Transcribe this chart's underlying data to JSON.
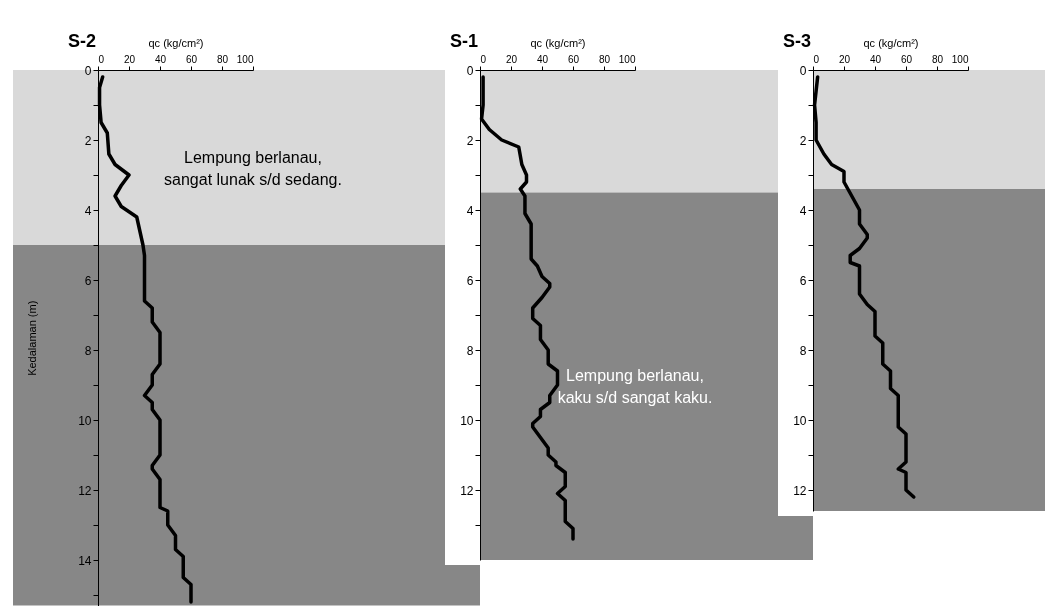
{
  "chart_data": [
    {
      "type": "line",
      "title": "S-2",
      "xlabel": "qc (kg/cm²)",
      "ylabel": "Kedalaman  (m)",
      "xlim": [
        0,
        100
      ],
      "xticks": [
        0,
        20,
        40,
        60,
        80,
        100
      ],
      "ylim": [
        15.3,
        0
      ],
      "yticks": [
        0,
        {
          "value": 1,
          "label": null
        },
        2,
        {
          "value": 3,
          "label": null
        },
        4,
        {
          "value": 5,
          "label": null
        },
        6,
        {
          "value": 7,
          "label": null
        },
        8,
        {
          "value": 9,
          "label": null
        },
        10,
        {
          "value": 11,
          "label": null
        },
        12,
        {
          "value": 13,
          "label": null
        },
        14,
        {
          "value": 15,
          "label": null
        }
      ],
      "grid": false,
      "marker": "none",
      "line_style": "solid",
      "bands": [
        {
          "axis": "y",
          "from": 0,
          "to": 5.0,
          "color": "#d9d9d9",
          "label": "Lempung berlanau,\nsangat lunak s/d sedang."
        },
        {
          "axis": "y",
          "from": 5.0,
          "to": 15.3,
          "color": "#878787"
        }
      ],
      "series": [
        {
          "color": "#000000",
          "x": [
            3,
            1,
            1,
            2,
            6,
            7,
            11,
            20,
            15,
            11,
            15,
            25,
            27,
            29,
            30,
            30,
            35,
            35,
            40,
            40,
            35,
            35,
            30,
            35,
            35,
            40,
            40,
            35,
            35,
            40,
            40,
            45,
            45,
            50,
            50,
            55,
            55,
            60,
            60
          ],
          "values": [
            0.2,
            0.5,
            1.0,
            1.5,
            1.8,
            2.4,
            2.7,
            3.0,
            3.3,
            3.6,
            3.9,
            4.2,
            4.6,
            5.0,
            5.3,
            6.6,
            6.8,
            7.2,
            7.5,
            8.4,
            8.7,
            9.0,
            9.3,
            9.5,
            9.7,
            10.0,
            11.0,
            11.3,
            11.4,
            11.7,
            12.5,
            12.6,
            13.0,
            13.3,
            13.7,
            13.9,
            14.5,
            14.7,
            15.2
          ]
        }
      ]
    },
    {
      "type": "line",
      "title": "S-1",
      "xlabel": "qc (kg/cm²)",
      "xlim": [
        0,
        100
      ],
      "xticks": [
        0,
        20,
        40,
        60,
        80,
        100
      ],
      "ylim": [
        14,
        0
      ],
      "yticks": [
        0,
        {
          "value": 1,
          "label": null
        },
        2,
        {
          "value": 3,
          "label": null
        },
        4,
        {
          "value": 5,
          "label": null
        },
        6,
        {
          "value": 7,
          "label": null
        },
        8,
        {
          "value": 9,
          "label": null
        },
        10,
        {
          "value": 11,
          "label": null
        },
        12,
        {
          "value": 13,
          "label": null
        }
      ],
      "grid": false,
      "marker": "none",
      "line_style": "solid",
      "bands": [
        {
          "axis": "y",
          "from": 0,
          "to": 3.5,
          "color": "#d9d9d9"
        },
        {
          "axis": "y",
          "from": 3.5,
          "to": 14,
          "color": "#878787",
          "label": "Lempung berlanau,\nkaku s/d sangat kaku."
        }
      ],
      "series": [
        {
          "color": "#000000",
          "x": [
            2,
            2,
            1,
            6,
            14,
            25,
            27,
            30,
            30,
            26,
            29,
            29,
            33,
            33,
            37,
            40,
            45,
            45,
            40,
            34,
            34,
            39,
            39,
            44,
            44,
            50,
            50,
            45,
            45,
            39,
            39,
            34,
            34,
            44,
            44,
            49,
            49,
            55,
            55,
            50,
            55,
            55,
            60,
            60
          ],
          "values": [
            0.2,
            1.0,
            1.4,
            1.7,
            2.0,
            2.2,
            2.7,
            3.0,
            3.2,
            3.4,
            3.6,
            4.1,
            4.4,
            5.4,
            5.6,
            5.9,
            6.1,
            6.2,
            6.5,
            6.8,
            7.1,
            7.3,
            7.7,
            8.0,
            8.4,
            8.6,
            9.0,
            9.3,
            9.5,
            9.7,
            9.9,
            10.1,
            10.2,
            10.8,
            11.0,
            11.2,
            11.3,
            11.5,
            11.9,
            12.1,
            12.3,
            12.9,
            13.1,
            13.4
          ]
        }
      ]
    },
    {
      "type": "line",
      "title": "S-3",
      "xlabel": "qc (kg/cm²)",
      "xlim": [
        0,
        100
      ],
      "xticks": [
        0,
        20,
        40,
        60,
        80,
        100
      ],
      "ylim": [
        12.6,
        0
      ],
      "yticks": [
        0,
        {
          "value": 1,
          "label": null
        },
        2,
        {
          "value": 3,
          "label": null
        },
        4,
        {
          "value": 5,
          "label": null
        },
        6,
        {
          "value": 7,
          "label": null
        },
        8,
        {
          "value": 9,
          "label": null
        },
        10,
        {
          "value": 11,
          "label": null
        },
        12
      ],
      "grid": false,
      "marker": "none",
      "line_style": "solid",
      "bands": [
        {
          "axis": "y",
          "from": 0,
          "to": 3.4,
          "color": "#d9d9d9"
        },
        {
          "axis": "y",
          "from": 3.4,
          "to": 12.6,
          "color": "#878787"
        }
      ],
      "series": [
        {
          "color": "#000000",
          "x": [
            3,
            2,
            1,
            2,
            2,
            7,
            12,
            20,
            20,
            25,
            30,
            30,
            35,
            35,
            30,
            24,
            24,
            30,
            30,
            35,
            40,
            40,
            45,
            45,
            50,
            50,
            55,
            55,
            60,
            60,
            55,
            60,
            60,
            65
          ],
          "values": [
            0.2,
            0.6,
            1.0,
            1.5,
            2.0,
            2.4,
            2.7,
            2.9,
            3.2,
            3.6,
            4.0,
            4.4,
            4.7,
            4.8,
            5.1,
            5.3,
            5.5,
            5.6,
            6.4,
            6.7,
            6.9,
            7.6,
            7.8,
            8.4,
            8.6,
            9.1,
            9.3,
            10.2,
            10.4,
            11.2,
            11.4,
            11.5,
            12.0,
            12.2
          ]
        }
      ]
    }
  ]
}
